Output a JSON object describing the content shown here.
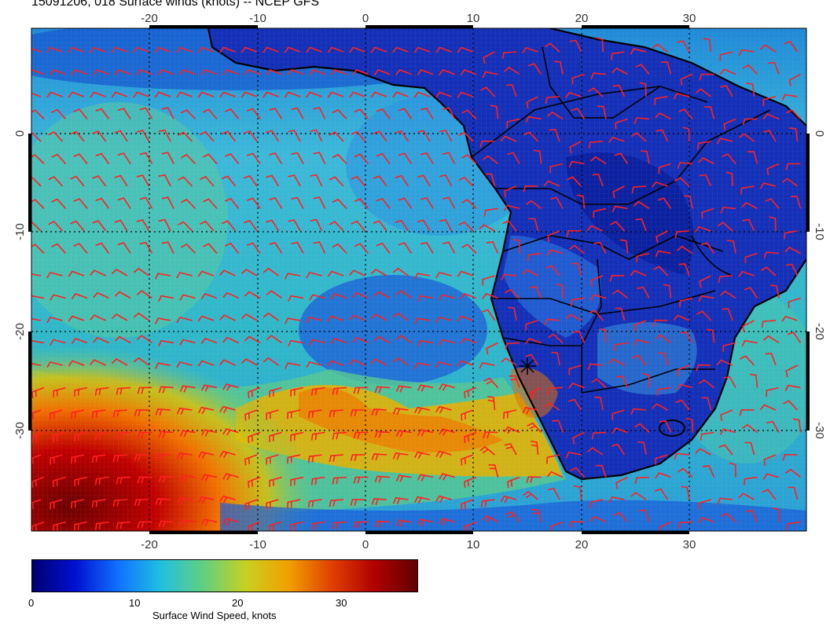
{
  "title": "15091206, 018 Surface winds (knots) -- NCEP GFS",
  "map": {
    "lon_ticks": [
      "-20",
      "-10",
      "0",
      "10",
      "20",
      "30"
    ],
    "lat_ticks": [
      "0",
      "-10",
      "-20",
      "-30"
    ],
    "lon_range": [
      -30,
      40
    ],
    "lat_range": [
      -40,
      10
    ],
    "graticule": "dotted",
    "barb_color": "#ff2020",
    "coast_color": "#000000"
  },
  "colorbar": {
    "title": "Surface Wind Speed, knots",
    "ticks": [
      "0",
      "10",
      "20",
      "30"
    ],
    "range": [
      0,
      37
    ],
    "colors": [
      "#000070",
      "#0010d0",
      "#1070ff",
      "#20c0e0",
      "#60d080",
      "#c8d020",
      "#f0a000",
      "#e04000",
      "#b00000",
      "#600000"
    ]
  }
}
